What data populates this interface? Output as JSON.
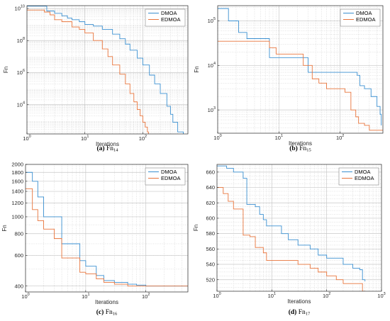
{
  "colors": {
    "DMOA": "#3a8fd0",
    "EDMOA": "#e8743b",
    "grid": "#c8c8c8",
    "axis": "#262626"
  },
  "chart_data": [
    {
      "type": "line",
      "caption": {
        "letter": "(a)",
        "prefix": "Fn",
        "sub": "14"
      },
      "xlabel": "Iterations",
      "ylabel": "Fn",
      "xscale": "log",
      "yscale": "log",
      "xlim": [
        1,
        600
      ],
      "ylim": [
        150,
        15000000000
      ],
      "xticks": [
        {
          "v": 1,
          "base": "10",
          "exp": "0"
        },
        {
          "v": 10,
          "base": "10",
          "exp": "1"
        },
        {
          "v": 100,
          "base": "10",
          "exp": "2"
        }
      ],
      "yticks": [
        {
          "v": 10000,
          "base": "10",
          "exp": "4"
        },
        {
          "v": 1000000,
          "base": "10",
          "exp": "6"
        },
        {
          "v": 100000000,
          "base": "10",
          "exp": "8"
        },
        {
          "v": 10000000000,
          "base": "10",
          "exp": "10"
        }
      ],
      "grid": true,
      "legend": "top-right",
      "series": [
        {
          "name": "DMOA",
          "key": "DMOA",
          "x": [
            1,
            1.8,
            2.2,
            3,
            4,
            5,
            6,
            8,
            10,
            14,
            20,
            30,
            40,
            50,
            60,
            80,
            100,
            130,
            160,
            200,
            260,
            300,
            330,
            400,
            500
          ],
          "y": [
            14000000000.0,
            14000000000.0,
            7000000000.0,
            5000000000.0,
            3500000000.0,
            2500000000.0,
            2000000000.0,
            1500000000.0,
            1000000000.0,
            800000000.0,
            500000000.0,
            250000000.0,
            130000000.0,
            60000000.0,
            25000000.0,
            8000000.0,
            3000000.0,
            700000.0,
            200000.0,
            50000.0,
            8000.0,
            2500.0,
            800,
            200,
            150
          ]
        },
        {
          "name": "EDMOA",
          "key": "EDMOA",
          "x": [
            1,
            1.5,
            2,
            2.5,
            3,
            4,
            6,
            8,
            10,
            14,
            20,
            25,
            30,
            40,
            50,
            60,
            70,
            80,
            90,
            100,
            110,
            120,
            125
          ],
          "y": [
            8000000000.0,
            8000000000.0,
            6000000000.0,
            4000000000.0,
            2000000000.0,
            1500000000.0,
            700000000.0,
            500000000.0,
            300000000.0,
            100000000.0,
            30000000.0,
            10000000.0,
            3000000.0,
            800000.0,
            200000.0,
            50000.0,
            15000.0,
            5000.0,
            2000.0,
            800,
            400,
            200,
            150
          ]
        }
      ]
    },
    {
      "type": "line",
      "caption": {
        "letter": "(b)",
        "prefix": "Fn",
        "sub": "15"
      },
      "xlabel": "Iterations",
      "ylabel": "Fn",
      "xscale": "log",
      "yscale": "log",
      "xlim": [
        1,
        500
      ],
      "ylim": [
        300,
        220000
      ],
      "xticks": [
        {
          "v": 1,
          "base": "10",
          "exp": "0"
        },
        {
          "v": 10,
          "base": "10",
          "exp": "1"
        },
        {
          "v": 100,
          "base": "10",
          "exp": "2"
        }
      ],
      "yticks": [
        {
          "v": 1000,
          "base": "10",
          "exp": "3"
        },
        {
          "v": 10000,
          "base": "10",
          "exp": "4"
        },
        {
          "v": 100000,
          "base": "10",
          "exp": "5"
        }
      ],
      "grid": true,
      "legend": "top-right",
      "series": [
        {
          "name": "DMOA",
          "key": "DMOA",
          "x": [
            1,
            1.5,
            2.2,
            3,
            4.5,
            6,
            7,
            10,
            14,
            20,
            26,
            30,
            50,
            60,
            100,
            130,
            190,
            210,
            250,
            320,
            400,
            450,
            470
          ],
          "y": [
            190000,
            100000,
            55000,
            40000,
            40000,
            40000,
            15000,
            15000,
            15000,
            15000,
            15000,
            7000,
            7000,
            7000,
            7000,
            7000,
            6000,
            3500,
            3000,
            2000,
            1200,
            800,
            450
          ]
        },
        {
          "name": "EDMOA",
          "key": "EDMOA",
          "x": [
            1,
            2,
            5,
            7,
            9,
            12,
            20,
            25,
            30,
            35,
            45,
            60,
            80,
            100,
            120,
            150,
            180,
            200,
            250,
            300,
            500
          ],
          "y": [
            35000,
            35000,
            35000,
            25000,
            18000,
            18000,
            18000,
            10000,
            10000,
            5000,
            4000,
            3000,
            3000,
            3000,
            2500,
            1000,
            700,
            500,
            450,
            350,
            350
          ]
        }
      ]
    },
    {
      "type": "line",
      "caption": {
        "letter": "(c)",
        "prefix": "Fn",
        "sub": "16"
      },
      "xlabel": "Iterations",
      "ylabel": "Fn",
      "xscale": "log",
      "yscale": "log",
      "xlim": [
        1,
        500
      ],
      "ylim": [
        370,
        2000
      ],
      "xticks": [
        {
          "v": 1,
          "base": "10",
          "exp": "0"
        },
        {
          "v": 10,
          "base": "10",
          "exp": "1"
        },
        {
          "v": 100,
          "base": "10",
          "exp": "2"
        }
      ],
      "yticks": [
        {
          "v": 400,
          "label": "400"
        },
        {
          "v": 600,
          "label": "600"
        },
        {
          "v": 800,
          "label": "800"
        },
        {
          "v": 1000,
          "label": "1000"
        },
        {
          "v": 1200,
          "label": "1200"
        },
        {
          "v": 1400,
          "label": "1400"
        },
        {
          "v": 1600,
          "label": "1600"
        },
        {
          "v": 1800,
          "label": "1800"
        },
        {
          "v": 2000,
          "label": "2000"
        }
      ],
      "grid": true,
      "legend": "top-right",
      "series": [
        {
          "name": "DMOA",
          "key": "DMOA",
          "x": [
            1,
            1.3,
            1.6,
            2,
            3,
            4,
            6,
            8,
            10,
            12,
            15,
            20,
            30,
            50,
            70,
            100,
            500
          ],
          "y": [
            1800,
            1600,
            1300,
            1000,
            1000,
            700,
            700,
            560,
            520,
            520,
            460,
            430,
            420,
            410,
            405,
            400,
            400
          ]
        },
        {
          "name": "EDMOA",
          "key": "EDMOA",
          "x": [
            1,
            1.3,
            1.6,
            2,
            3,
            4,
            6,
            8,
            10,
            15,
            20,
            30,
            50,
            70,
            100,
            500
          ],
          "y": [
            1450,
            1100,
            950,
            850,
            750,
            580,
            580,
            480,
            470,
            440,
            420,
            410,
            400,
            400,
            400,
            400
          ]
        }
      ]
    },
    {
      "type": "line",
      "caption": {
        "letter": "(d)",
        "prefix": "Fn",
        "sub": "17"
      },
      "xlabel": "Iterations",
      "ylabel": "Fn",
      "xscale": "log",
      "yscale": "linear",
      "xlim": [
        1,
        1000
      ],
      "ylim": [
        505,
        670
      ],
      "xticks": [
        {
          "v": 1,
          "base": "10",
          "exp": "0"
        },
        {
          "v": 10,
          "base": "10",
          "exp": "1"
        },
        {
          "v": 100,
          "base": "10",
          "exp": "2"
        },
        {
          "v": 1000,
          "base": "10",
          "exp": "3"
        }
      ],
      "yticks": [
        {
          "v": 520,
          "label": "520"
        },
        {
          "v": 540,
          "label": "540"
        },
        {
          "v": 560,
          "label": "560"
        },
        {
          "v": 580,
          "label": "580"
        },
        {
          "v": 600,
          "label": "600"
        },
        {
          "v": 620,
          "label": "620"
        },
        {
          "v": 640,
          "label": "640"
        },
        {
          "v": 660,
          "label": "660"
        }
      ],
      "grid": true,
      "legend": "top-right",
      "series": [
        {
          "name": "DMOA",
          "key": "DMOA",
          "x": [
            1,
            1.5,
            2,
            3,
            3.5,
            5,
            6,
            7,
            8,
            10,
            15,
            20,
            30,
            50,
            70,
            100,
            200,
            300,
            400,
            450,
            500
          ],
          "y": [
            668,
            665,
            660,
            652,
            618,
            615,
            605,
            598,
            590,
            590,
            580,
            572,
            565,
            560,
            552,
            548,
            540,
            535,
            533,
            520,
            518
          ]
        },
        {
          "name": "EDMOA",
          "key": "EDMOA",
          "x": [
            1,
            1.3,
            1.6,
            2,
            3,
            4,
            5,
            7,
            8,
            10,
            20,
            30,
            50,
            70,
            100,
            150,
            200,
            300,
            400,
            450,
            500
          ],
          "y": [
            640,
            632,
            622,
            612,
            578,
            576,
            562,
            555,
            545,
            545,
            545,
            540,
            535,
            530,
            525,
            520,
            515,
            515,
            515,
            505,
            505
          ]
        }
      ]
    }
  ]
}
